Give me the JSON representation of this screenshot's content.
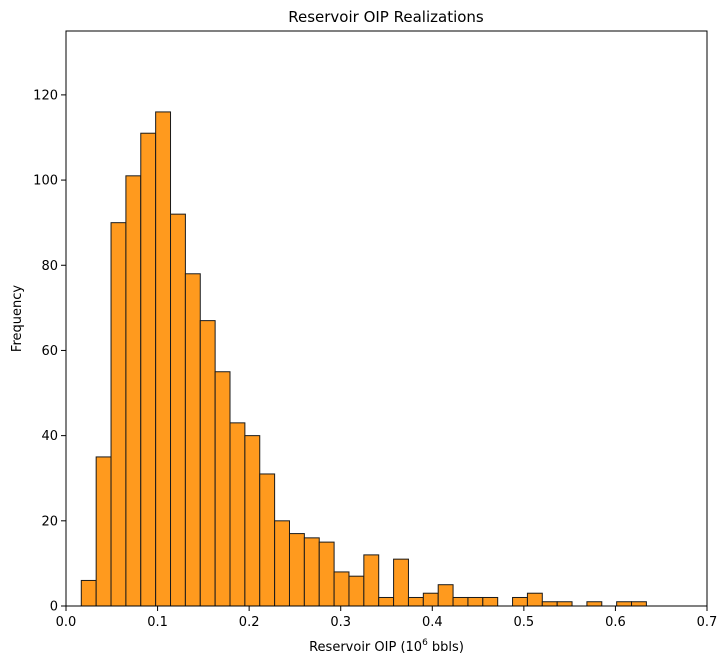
{
  "chart_data": {
    "type": "bar",
    "title": "Reservoir OIP Realizations",
    "xlabel": "Reservoir OIP (10",
    "xlabel_superscript": "6",
    "xlabel_suffix": " bbls)",
    "ylabel": "Frequency",
    "xlim": [
      0.0,
      0.7
    ],
    "ylim": [
      0,
      135
    ],
    "x_ticks": [
      0.0,
      0.1,
      0.2,
      0.3,
      0.4,
      0.5,
      0.6,
      0.7
    ],
    "x_tick_labels": [
      "0.0",
      "0.1",
      "0.2",
      "0.3",
      "0.4",
      "0.5",
      "0.6",
      "0.7"
    ],
    "y_ticks": [
      0,
      20,
      40,
      60,
      80,
      100,
      120
    ],
    "y_tick_labels": [
      "0",
      "20",
      "40",
      "60",
      "80",
      "100",
      "120"
    ],
    "grid": false,
    "bar_color": "#ff9a1e",
    "edge_color": "#1a1a1a",
    "bin_start": 0.0167,
    "bin_width": 0.01624,
    "values": [
      6,
      35,
      90,
      101,
      111,
      116,
      92,
      78,
      67,
      55,
      43,
      40,
      31,
      20,
      17,
      16,
      15,
      8,
      7,
      12,
      2,
      11,
      2,
      3,
      5,
      2,
      2,
      2,
      0,
      2,
      3,
      1,
      1,
      0,
      1,
      0,
      1,
      1
    ]
  }
}
